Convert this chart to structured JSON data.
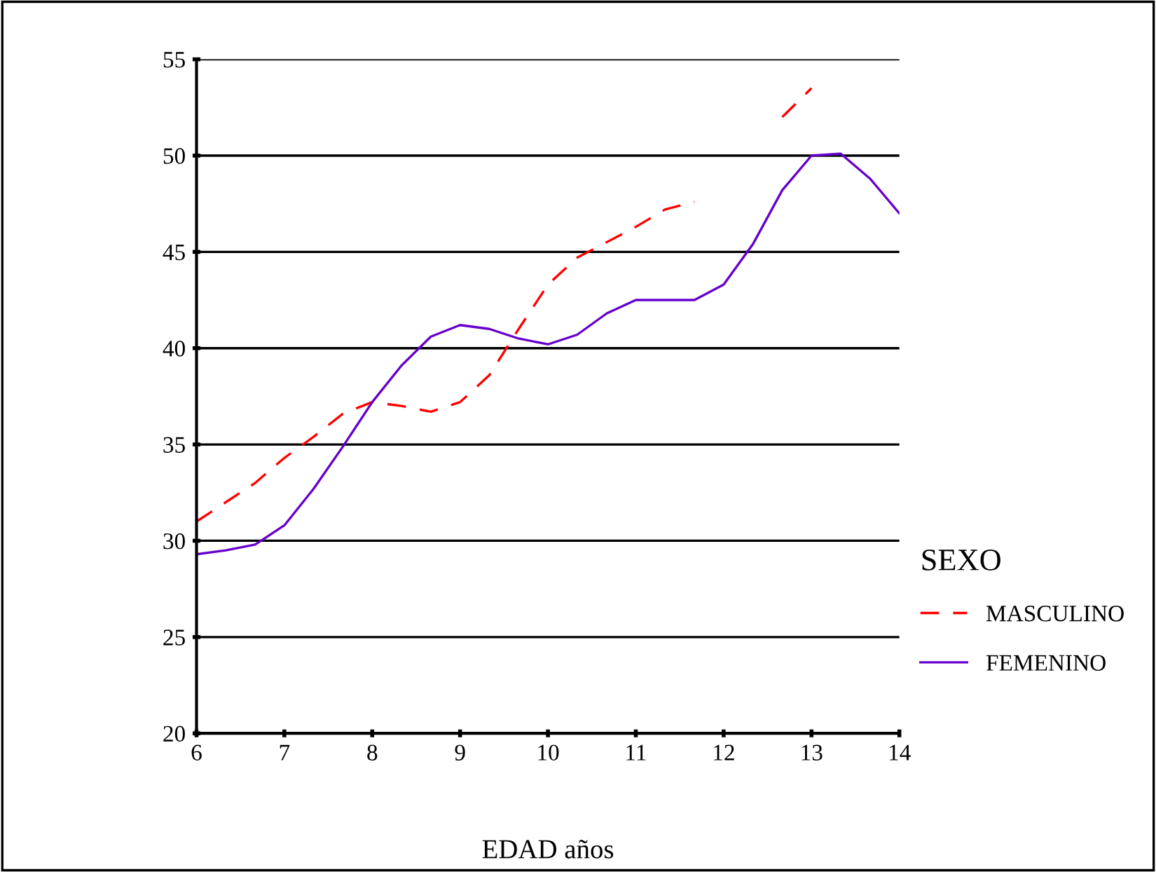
{
  "chart_data": {
    "type": "line",
    "xlabel": "EDAD años",
    "legend_title": "SEXO",
    "x": [
      6,
      6.333,
      6.667,
      7,
      7.333,
      7.667,
      8,
      8.333,
      8.667,
      9,
      9.333,
      9.667,
      10,
      10.333,
      10.667,
      11,
      11.333,
      11.667,
      12,
      12.333,
      12.667,
      13,
      13.333,
      13.667,
      14
    ],
    "series": [
      {
        "name": "MASCULINO",
        "color": "#ff0000",
        "line_style": "dashed",
        "values": [
          31.0,
          32.0,
          33.0,
          34.3,
          35.4,
          36.6,
          37.2,
          37.0,
          36.7,
          37.2,
          38.6,
          41.0,
          43.3,
          44.7,
          45.5,
          46.3,
          47.2,
          47.6,
          null,
          null,
          52.0,
          53.5,
          null,
          null,
          null
        ]
      },
      {
        "name": "FEMENINO",
        "color": "#6600cc",
        "line_style": "solid",
        "values": [
          29.3,
          29.5,
          29.8,
          30.8,
          32.7,
          34.9,
          37.2,
          39.1,
          40.6,
          41.2,
          41.0,
          40.5,
          40.2,
          40.7,
          41.8,
          42.5,
          42.5,
          42.5,
          43.3,
          45.4,
          48.2,
          50.0,
          50.1,
          48.8,
          47.0
        ]
      }
    ],
    "xlim": [
      6,
      14
    ],
    "xticks": [
      6,
      7,
      8,
      9,
      10,
      11,
      12,
      13,
      14
    ],
    "ylim": [
      20,
      55
    ],
    "yticks": [
      20,
      25,
      30,
      35,
      40,
      45,
      50,
      55
    ],
    "grid": "y",
    "legend": "right"
  }
}
